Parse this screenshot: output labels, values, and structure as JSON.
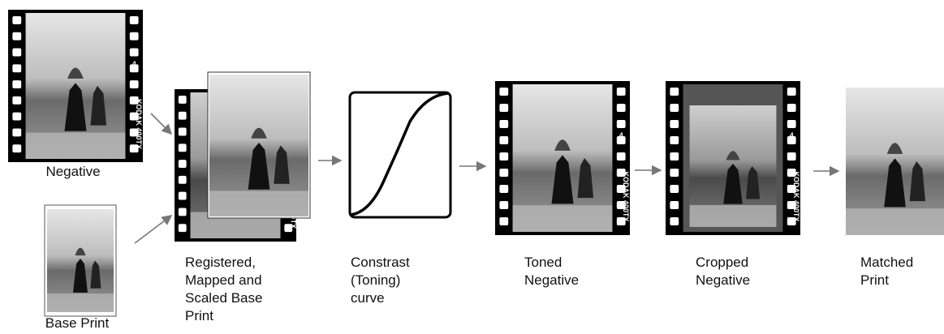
{
  "nodes": [
    {
      "label": [
        "Negative"
      ]
    },
    {
      "label": [
        "Base Print"
      ]
    },
    {
      "label": [
        "Registered,",
        "Mapped and",
        "Scaled Base",
        "Print"
      ]
    },
    {
      "label": [
        "Constrast",
        "(Toning)",
        "curve"
      ]
    },
    {
      "label": [
        "Toned",
        "Negative"
      ]
    },
    {
      "label": [
        "Cropped",
        "Negative"
      ]
    },
    {
      "label": [
        "Matched",
        "Print"
      ]
    }
  ],
  "film_edge": {
    "brand": "KODAK 400TX",
    "frame": "4"
  }
}
